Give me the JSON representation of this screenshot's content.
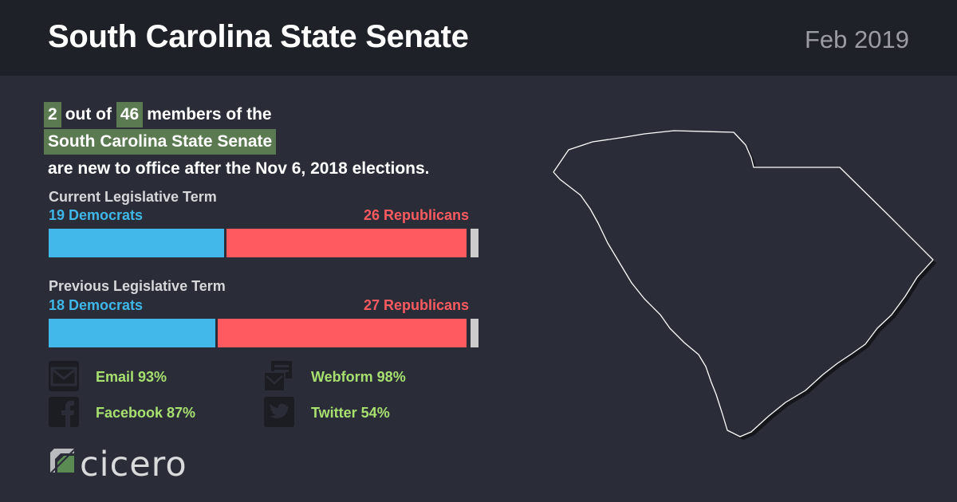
{
  "header": {
    "title": "South Carolina State Senate",
    "date": "Feb 2019"
  },
  "intro": {
    "new_count": "2",
    "out_of": "out of",
    "total": "46",
    "members_of_the": "members of the",
    "chamber": "South Carolina State Senate",
    "suffix": "are new to office after the Nov 6, 2018 elections."
  },
  "current_term": {
    "label": "Current Legislative Term",
    "democrats_label": "19 Democrats",
    "republicans_label": "26 Republicans",
    "democrats": 19,
    "republicans": 26,
    "other": 1
  },
  "previous_term": {
    "label": "Previous Legislative Term",
    "democrats_label": "18 Democrats",
    "republicans_label": "27 Republicans",
    "democrats": 18,
    "republicans": 27,
    "other": 1
  },
  "contact_methods": {
    "email": "Email 93%",
    "webform": "Webform 98%",
    "facebook": "Facebook 87%",
    "twitter": "Twitter 54%"
  },
  "icons": {
    "email": "envelope-icon",
    "webform": "webform-icon",
    "facebook": "facebook-icon",
    "twitter": "twitter-icon"
  },
  "colors": {
    "democrat": "#41b8e9",
    "republican": "#ff5a5f",
    "highlight": "#5b7a52",
    "contact_text": "#a8e070"
  },
  "brand": {
    "name": "cicero"
  }
}
